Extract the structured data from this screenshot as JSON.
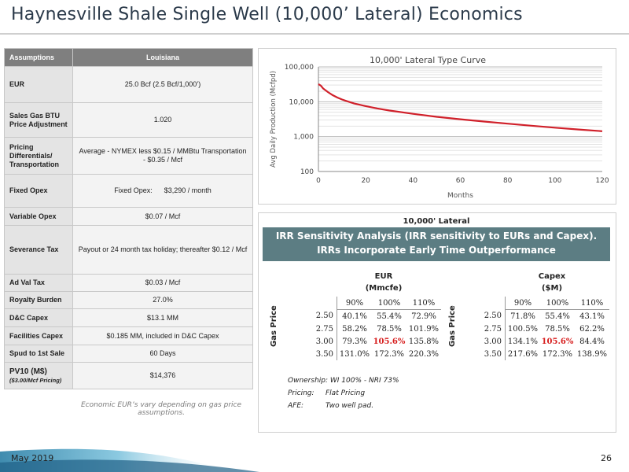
{
  "page_title": "Haynesville Shale Single Well (10,000’ Lateral) Economics",
  "assumptions": {
    "header_left": "Assumptions",
    "header_right": "Louisiana",
    "rows": [
      {
        "label": "EUR",
        "value": "25.0 Bcf (2.5 Bcf/1,000’)"
      },
      {
        "label": "Sales Gas BTU Price Adjustment",
        "value": "1.020"
      },
      {
        "label": "Pricing Differentials/ Transportation",
        "value": "Average - NYMEX less $0.15 / MMBtu Transportation - $0.35 / Mcf"
      },
      {
        "label": "Fixed Opex",
        "value": "Fixed Opex:      $3,290 / month"
      },
      {
        "label": "Variable Opex",
        "value": "$0.07 / Mcf"
      },
      {
        "label": "Severance Tax",
        "value": "Payout or 24 month tax holiday; thereafter $0.12 / Mcf"
      },
      {
        "label": "Ad Val Tax",
        "value": "$0.03 / Mcf"
      },
      {
        "label": "Royalty Burden",
        "value": "27.0%"
      },
      {
        "label": "D&C Capex",
        "value": "$13.1 MM"
      },
      {
        "label": "Facilities Capex",
        "value": "$0.185 MM, included in D&C Capex"
      },
      {
        "label": "Spud to 1st Sale",
        "value": "60 Days"
      },
      {
        "label": "PV10 (M$)",
        "sublabel": "($3.00/Mcf Pricing)",
        "value": "$14,376"
      }
    ],
    "footnote": "Economic EUR’s vary depending on gas price assumptions."
  },
  "chart_data": {
    "type": "line",
    "title": "10,000' Lateral Type Curve",
    "xlabel": "Months",
    "ylabel": "Avg Daily Production (Mcfpd)",
    "xlim": [
      0,
      120
    ],
    "ylim": [
      100,
      100000
    ],
    "yscale": "log",
    "x_ticks": [
      0,
      20,
      40,
      60,
      80,
      100,
      120
    ],
    "y_ticks": [
      "100",
      "1,000",
      "10,000",
      "100,000"
    ],
    "grid": true,
    "series": [
      {
        "color": "#d0202a",
        "x": [
          0,
          1,
          2,
          4,
          6,
          8,
          10,
          12,
          15,
          20,
          25,
          30,
          40,
          50,
          60,
          70,
          80,
          90,
          100,
          110,
          120
        ],
        "y": [
          32000,
          29000,
          24000,
          19000,
          15500,
          13200,
          11600,
          10400,
          9000,
          7500,
          6400,
          5600,
          4500,
          3700,
          3150,
          2700,
          2350,
          2050,
          1800,
          1600,
          1430
        ]
      }
    ]
  },
  "irr": {
    "heading": "10,000' Lateral",
    "banner": "IRR Sensitivity Analysis (IRR sensitivity to EURs and Capex). IRRs Incorporate Early Time Outperformance",
    "row_axis_label": "Gas Price",
    "eur_table": {
      "title_line1": "EUR",
      "title_line2": "(Mmcfe)",
      "columns": [
        "90%",
        "100%",
        "110%"
      ],
      "rows": [
        {
          "price": "2.50",
          "values": [
            "40.1%",
            "55.4%",
            "72.9%"
          ]
        },
        {
          "price": "2.75",
          "values": [
            "58.2%",
            "78.5%",
            "101.9%"
          ]
        },
        {
          "price": "3.00",
          "values": [
            "79.3%",
            "105.6%",
            "135.8%"
          ]
        },
        {
          "price": "3.50",
          "values": [
            "131.0%",
            "172.3%",
            "220.3%"
          ]
        }
      ]
    },
    "capex_table": {
      "title_line1": "Capex",
      "title_line2": "($M)",
      "columns": [
        "90%",
        "100%",
        "110%"
      ],
      "rows": [
        {
          "price": "2.50",
          "values": [
            "71.8%",
            "55.4%",
            "43.1%"
          ]
        },
        {
          "price": "2.75",
          "values": [
            "100.5%",
            "78.5%",
            "62.2%"
          ]
        },
        {
          "price": "3.00",
          "values": [
            "134.1%",
            "105.6%",
            "84.4%"
          ]
        },
        {
          "price": "3.50",
          "values": [
            "217.6%",
            "172.3%",
            "138.9%"
          ]
        }
      ]
    },
    "highlight_color": "#d71f1f",
    "ownership": "Ownership: WI 100% - NRI 73%",
    "pricing_label": "Pricing:",
    "pricing_value": "Flat Pricing",
    "afe_label": "AFE:",
    "afe_value": "Two well pad."
  },
  "footer": {
    "date": "May 2019",
    "page_number": "26"
  }
}
